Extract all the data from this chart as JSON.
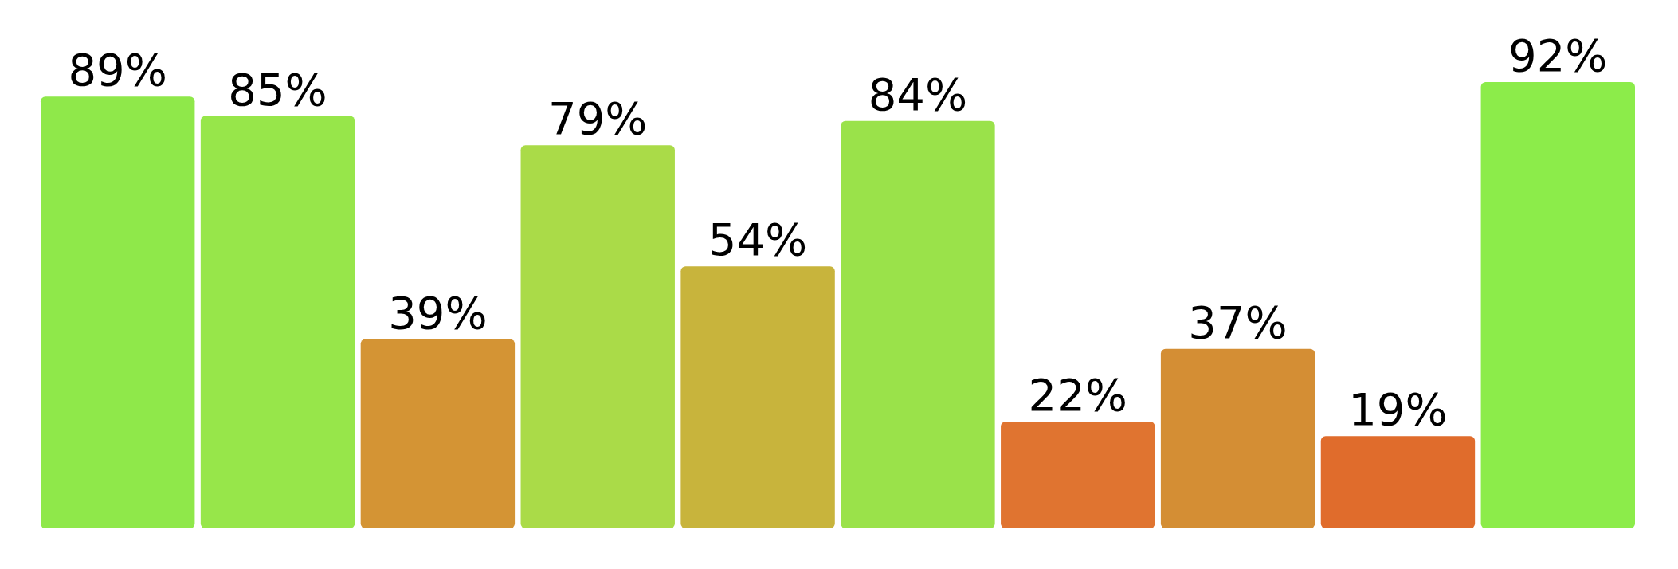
{
  "chart_data": {
    "type": "bar",
    "categories": [
      null,
      null,
      null,
      null,
      null,
      null,
      null,
      null,
      null,
      null
    ],
    "values": [
      89,
      85,
      39,
      79,
      54,
      84,
      22,
      37,
      19,
      92
    ],
    "colors": [
      "#8fe84a",
      "#97e64a",
      "#d49434",
      "#aadb48",
      "#c8b43c",
      "#9ae24a",
      "#e07430",
      "#d48e34",
      "#e06c2c",
      "#8cec4a"
    ],
    "value_labels": [
      "89%",
      "85%",
      "39%",
      "79%",
      "54%",
      "84%",
      "22%",
      "37%",
      "19%",
      "92%"
    ]
  }
}
